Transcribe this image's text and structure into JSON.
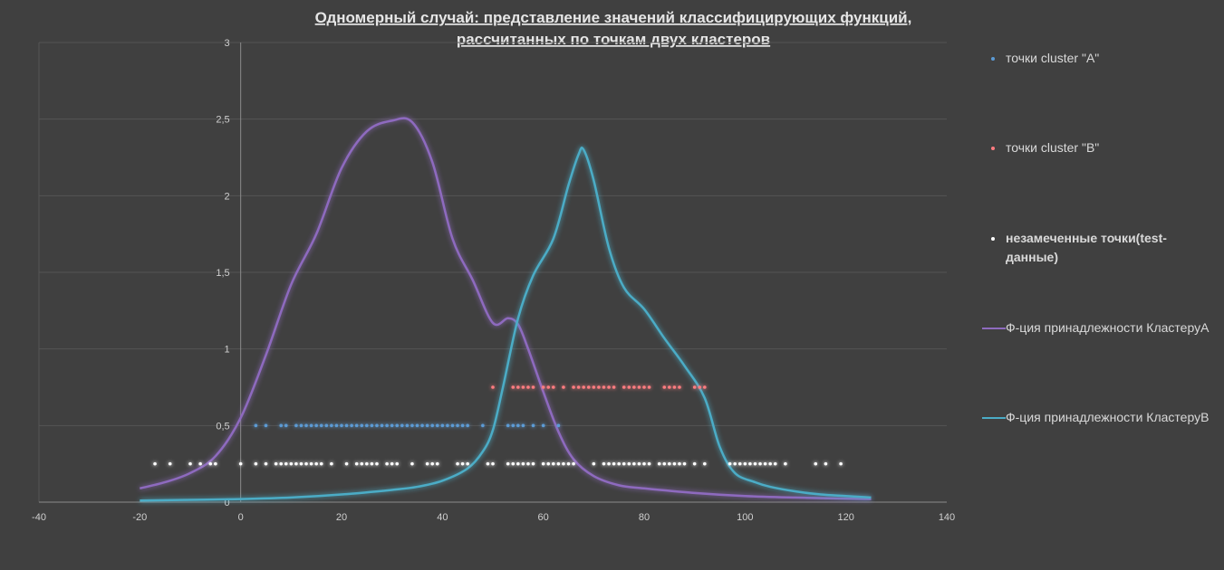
{
  "chart_data": {
    "type": "scatter",
    "title_lines": [
      "Одномерный случай:  представление  значений классифицирующих функций,",
      "рассчитанных по точкам двух кластеров"
    ],
    "xlim": [
      -40,
      140
    ],
    "ylim": [
      0,
      3
    ],
    "x_ticks": [
      -40,
      -20,
      0,
      20,
      40,
      60,
      80,
      100,
      120,
      140
    ],
    "y_ticks": [
      0,
      0.5,
      1,
      1.5,
      2,
      2.5,
      3
    ],
    "y_tick_labels": [
      "0",
      "0,5",
      "1",
      "1,5",
      "2",
      "2,5",
      "3"
    ],
    "grid": "horizontal",
    "legend_position": "right",
    "series": [
      {
        "name": "точки cluster \"A\"",
        "kind": "points",
        "color": "#5b9bd5",
        "y": 0.5,
        "x": [
          3,
          5,
          8,
          9,
          11,
          12,
          13,
          14,
          15,
          16,
          17,
          18,
          19,
          20,
          21,
          22,
          23,
          24,
          25,
          26,
          27,
          28,
          29,
          30,
          31,
          32,
          33,
          34,
          35,
          36,
          37,
          38,
          39,
          40,
          41,
          42,
          43,
          44,
          45,
          48,
          53,
          54,
          55,
          56,
          58,
          60,
          63
        ]
      },
      {
        "name": "точки cluster \"B\"",
        "kind": "points",
        "color": "#ff7c80",
        "y": 0.75,
        "x": [
          50,
          54,
          55,
          56,
          57,
          58,
          60,
          61,
          62,
          64,
          66,
          67,
          68,
          69,
          70,
          71,
          72,
          73,
          74,
          76,
          77,
          78,
          79,
          80,
          81,
          84,
          85,
          86,
          87,
          90,
          91,
          92
        ]
      },
      {
        "name": "незамеченные точки(test-данные)",
        "kind": "points",
        "color": "#ffffff",
        "y": 0.25,
        "x": [
          -17,
          -14,
          -10,
          -8,
          -6,
          -5,
          0,
          3,
          5,
          7,
          8,
          9,
          10,
          11,
          12,
          13,
          14,
          15,
          16,
          18,
          21,
          23,
          24,
          25,
          26,
          27,
          29,
          30,
          31,
          34,
          37,
          38,
          39,
          43,
          44,
          45,
          49,
          50,
          53,
          54,
          55,
          56,
          57,
          58,
          60,
          61,
          62,
          63,
          64,
          65,
          66,
          70,
          72,
          73,
          74,
          75,
          76,
          77,
          78,
          79,
          80,
          81,
          83,
          84,
          85,
          86,
          87,
          88,
          90,
          92,
          97,
          98,
          99,
          100,
          101,
          102,
          103,
          104,
          105,
          106,
          108,
          114,
          116,
          119
        ]
      },
      {
        "name": "Ф-ция принадлежности КластеруА",
        "kind": "line",
        "color": "#8e6bbf",
        "x": [
          -20,
          -15,
          -10,
          -5,
          0,
          5,
          10,
          15,
          20,
          25,
          30,
          34,
          38,
          42,
          46,
          50,
          53,
          55,
          57,
          60,
          63,
          66,
          70,
          75,
          80,
          90,
          100,
          110,
          125
        ],
        "y": [
          0.09,
          0.13,
          0.19,
          0.3,
          0.55,
          0.96,
          1.42,
          1.75,
          2.18,
          2.42,
          2.49,
          2.48,
          2.22,
          1.72,
          1.45,
          1.17,
          1.2,
          1.16,
          1.0,
          0.72,
          0.46,
          0.28,
          0.17,
          0.11,
          0.09,
          0.06,
          0.04,
          0.03,
          0.02
        ]
      },
      {
        "name": "Ф-ция принадлежности КластеруB",
        "kind": "line",
        "color": "#4bacc6",
        "x": [
          -20,
          -10,
          0,
          10,
          20,
          30,
          35,
          40,
          45,
          48,
          50,
          52,
          55,
          58,
          62,
          65,
          67,
          68,
          70,
          73,
          76,
          80,
          84,
          88,
          92,
          95,
          98,
          102,
          105,
          110,
          115,
          120,
          125
        ],
        "y": [
          0.01,
          0.015,
          0.02,
          0.03,
          0.05,
          0.08,
          0.1,
          0.14,
          0.22,
          0.33,
          0.47,
          0.75,
          1.2,
          1.48,
          1.72,
          2.07,
          2.27,
          2.3,
          2.1,
          1.66,
          1.4,
          1.26,
          1.07,
          0.89,
          0.68,
          0.36,
          0.19,
          0.13,
          0.1,
          0.07,
          0.05,
          0.04,
          0.03
        ]
      }
    ]
  },
  "legend": {
    "items": [
      {
        "label": "точки cluster \"A\"",
        "type": "dot",
        "color": "#5b9bd5",
        "bold": false
      },
      {
        "label": "точки cluster \"B\"",
        "type": "dot",
        "color": "#ff7c80",
        "bold": false
      },
      {
        "label": "незамеченные точки(test-данные)",
        "type": "dot",
        "color": "#ffffff",
        "bold": true
      },
      {
        "label": "Ф-ция принадлежности КластеруА",
        "type": "line",
        "color": "#8e6bbf",
        "bold": false
      },
      {
        "label": "Ф-ция принадлежности КластеруB",
        "type": "line",
        "color": "#4bacc6",
        "bold": false
      }
    ]
  }
}
